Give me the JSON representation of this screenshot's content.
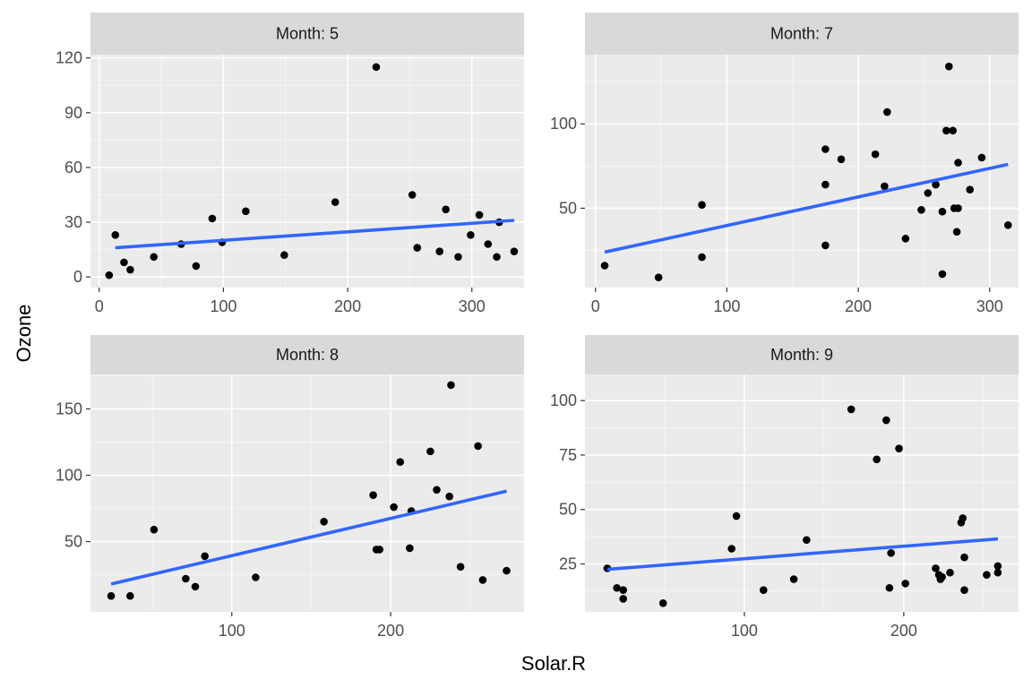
{
  "xlabel": "Solar.R",
  "ylabel": "Ozone",
  "colors": {
    "panel_bg": "#ebebeb",
    "grid": "#ffffff",
    "strip_bg": "#d9d9d9",
    "point": "#000000",
    "line": "#3366ff"
  },
  "chart_data": [
    {
      "type": "scatter",
      "panel": "Month: 5",
      "xlim": [
        -7,
        342
      ],
      "ylim": [
        -5.8,
        121.8
      ],
      "xticks": [
        0,
        100,
        200,
        300
      ],
      "yticks": [
        0,
        30,
        60,
        90,
        120
      ],
      "x": [
        8,
        13,
        20,
        25,
        44,
        66,
        78,
        91,
        99,
        118,
        149,
        190,
        223,
        252,
        256,
        274,
        279,
        289,
        299,
        306,
        313,
        320,
        322,
        334
      ],
      "y": [
        1,
        23,
        8,
        4,
        11,
        18,
        6,
        32,
        19,
        36,
        12,
        41,
        115,
        45,
        16,
        14,
        37,
        11,
        23,
        34,
        18,
        11,
        30,
        14
      ],
      "fit": [
        [
          13,
          16
        ],
        [
          334,
          31
        ]
      ]
    },
    {
      "type": "scatter",
      "panel": "Month: 7",
      "xlim": [
        -8,
        322
      ],
      "ylim": [
        3,
        141
      ],
      "xticks": [
        0,
        100,
        200,
        300
      ],
      "yticks": [
        50,
        100
      ],
      "x": [
        7,
        48,
        81,
        81,
        175,
        175,
        175,
        187,
        213,
        220,
        222,
        236,
        248,
        253,
        259,
        264,
        264,
        267,
        269,
        272,
        273,
        275,
        276,
        276,
        285,
        294,
        314
      ],
      "y": [
        16,
        9,
        52,
        21,
        85,
        64,
        28,
        79,
        82,
        63,
        107,
        32,
        49,
        59,
        64,
        48,
        11,
        96,
        134,
        96,
        50,
        36,
        77,
        50,
        61,
        80,
        40
      ],
      "fit": [
        [
          7,
          24
        ],
        [
          314,
          76
        ]
      ]
    },
    {
      "type": "scatter",
      "panel": "Month: 8",
      "xlim": [
        11,
        284
      ],
      "ylim": [
        -3,
        176
      ],
      "xticks": [
        100,
        200
      ],
      "yticks": [
        50,
        100,
        150
      ],
      "x": [
        24,
        36,
        51,
        71,
        77,
        83,
        115,
        158,
        189,
        191,
        193,
        202,
        206,
        212,
        213,
        225,
        229,
        237,
        238,
        244,
        255,
        258,
        273
      ],
      "y": [
        9,
        9,
        59,
        22,
        16,
        39,
        23,
        65,
        85,
        44,
        44,
        76,
        110,
        45,
        73,
        118,
        89,
        84,
        168,
        31,
        122,
        21,
        28
      ],
      "fit": [
        [
          24,
          18
        ],
        [
          273,
          88
        ]
      ]
    },
    {
      "type": "scatter",
      "panel": "Month: 9",
      "xlim": [
        0,
        272
      ],
      "ylim": [
        3,
        112
      ],
      "xticks": [
        100,
        200
      ],
      "yticks": [
        25,
        50,
        75,
        100
      ],
      "x": [
        14,
        20,
        24,
        24,
        49,
        92,
        95,
        112,
        131,
        139,
        167,
        183,
        189,
        191,
        192,
        197,
        201,
        220,
        222,
        223,
        224,
        229,
        236,
        237,
        238,
        238,
        252,
        259,
        259
      ],
      "y": [
        23,
        14,
        9,
        13,
        7,
        32,
        47,
        13,
        18,
        36,
        96,
        73,
        91,
        14,
        30,
        78,
        16,
        23,
        20,
        18,
        19,
        21,
        44,
        46,
        13,
        28,
        20,
        24,
        21
      ],
      "fit": [
        [
          14,
          22.5
        ],
        [
          259,
          36.5
        ]
      ]
    }
  ]
}
